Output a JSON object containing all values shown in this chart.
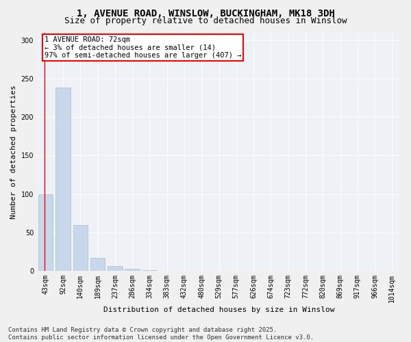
{
  "title_line1": "1, AVENUE ROAD, WINSLOW, BUCKINGHAM, MK18 3DH",
  "title_line2": "Size of property relative to detached houses in Winslow",
  "xlabel": "Distribution of detached houses by size in Winslow",
  "ylabel": "Number of detached properties",
  "bar_color": "#c8d8ea",
  "bar_edge_color": "#a8c0d4",
  "categories": [
    "43sqm",
    "92sqm",
    "140sqm",
    "189sqm",
    "237sqm",
    "286sqm",
    "334sqm",
    "383sqm",
    "432sqm",
    "480sqm",
    "529sqm",
    "577sqm",
    "626sqm",
    "674sqm",
    "723sqm",
    "772sqm",
    "820sqm",
    "869sqm",
    "917sqm",
    "966sqm",
    "1014sqm"
  ],
  "values": [
    100,
    238,
    60,
    17,
    6,
    3,
    1,
    0,
    0,
    0,
    0,
    0,
    0,
    0,
    0,
    0,
    0,
    0,
    0,
    0,
    0
  ],
  "ylim": [
    0,
    310
  ],
  "yticks": [
    0,
    50,
    100,
    150,
    200,
    250,
    300
  ],
  "annotation_line1": "1 AVENUE ROAD: 72sqm",
  "annotation_line2": "← 3% of detached houses are smaller (14)",
  "annotation_line3": "97% of semi-detached houses are larger (407) →",
  "bg_color": "#eef2f7",
  "grid_color": "#ffffff",
  "footer_text": "Contains HM Land Registry data © Crown copyright and database right 2025.\nContains public sector information licensed under the Open Government Licence v3.0.",
  "title_fontsize": 10,
  "subtitle_fontsize": 9,
  "axis_label_fontsize": 8,
  "tick_fontsize": 7,
  "annotation_fontsize": 7.5,
  "footer_fontsize": 6.5
}
